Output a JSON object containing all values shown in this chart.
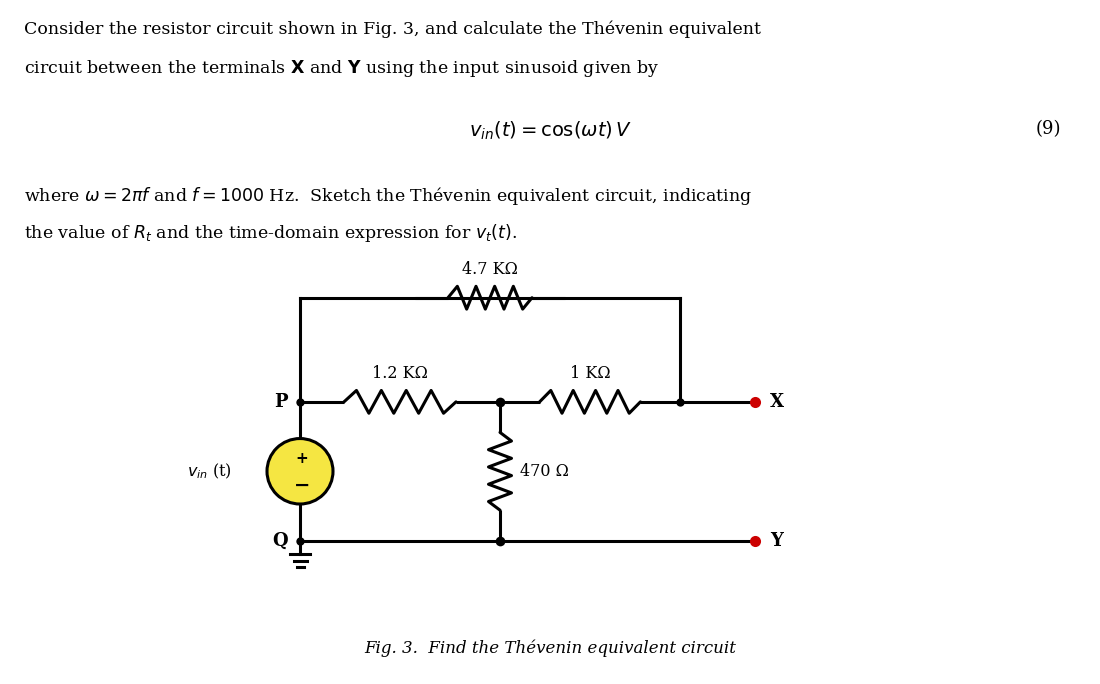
{
  "r1_label": "4.7 KΩ",
  "r2_label": "1.2 KΩ",
  "r3_label": "1 KΩ",
  "r4_label": "470 Ω",
  "node_P": "P",
  "node_Q": "Q",
  "node_X": "X",
  "node_Y": "Y",
  "vin_label": "$v_{in}$ (t)",
  "caption": "Fig. 3.  Find the Thévenin equivalent circuit",
  "eq_number": "(9)",
  "background_color": "#ffffff",
  "line_color": "#000000",
  "dot_color": "#cc0000",
  "source_fill": "#f5e642",
  "text_color": "#000000",
  "lw": 2.2
}
